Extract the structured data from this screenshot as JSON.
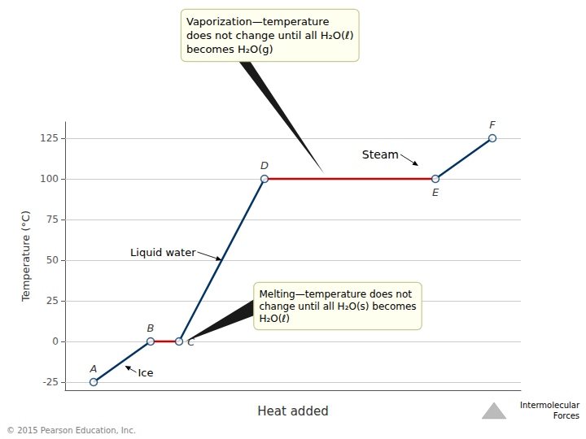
{
  "chart_data": {
    "type": "line",
    "xlabel": "Heat added",
    "ylabel": "Temperature (°C)",
    "xlim": [
      0.5,
      8.5
    ],
    "ylim": [
      -30,
      135
    ],
    "yticks": [
      -25,
      0,
      25,
      50,
      75,
      100,
      125
    ],
    "grid": true,
    "tick_labels": "y",
    "series": [
      {
        "type": "line",
        "color": "#003366",
        "x": [
          1,
          2
        ],
        "values": [
          -25,
          0
        ]
      },
      {
        "type": "line",
        "color": "#cc0000",
        "x": [
          2,
          2.5
        ],
        "values": [
          0,
          0
        ]
      },
      {
        "type": "line",
        "color": "#003366",
        "x": [
          2.5,
          4
        ],
        "values": [
          0,
          100
        ]
      },
      {
        "type": "line",
        "color": "#cc0000",
        "x": [
          4,
          7
        ],
        "values": [
          100,
          100
        ]
      },
      {
        "type": "line",
        "color": "#003366",
        "x": [
          7,
          8
        ],
        "values": [
          100,
          125
        ]
      },
      {
        "type": "scatter",
        "marker": "circle",
        "color": "#003366",
        "x": [
          1,
          2,
          2.5,
          4,
          7,
          8
        ],
        "values": [
          -25,
          0,
          0,
          100,
          100,
          125
        ],
        "point_labels": [
          "A",
          "B",
          "C",
          "D",
          "E",
          "F"
        ]
      }
    ],
    "annotations": [
      {
        "text": "Ice",
        "x": 1.55,
        "y": -15
      },
      {
        "text": "Liquid water",
        "x": 3.25,
        "y": 50
      },
      {
        "text": "Steam",
        "x": 6.7,
        "y": 108
      }
    ],
    "callouts": [
      {
        "text": "Melting—temperature does not\nchange until all H₂O(s) becomes\nH₂O(ℓ)",
        "x": 2.55,
        "y": 0,
        "color": "#fffff0"
      },
      {
        "text": "Vaporization—temperature\ndoes not change until all H₂O(ℓ)\nbecomes H₂O(g)",
        "x": 5.05,
        "y": 103,
        "color": "#fffff0"
      }
    ],
    "footnotes": [
      "© 2015 Pearson Education, Inc.",
      "Intermolecular\nForces"
    ]
  }
}
